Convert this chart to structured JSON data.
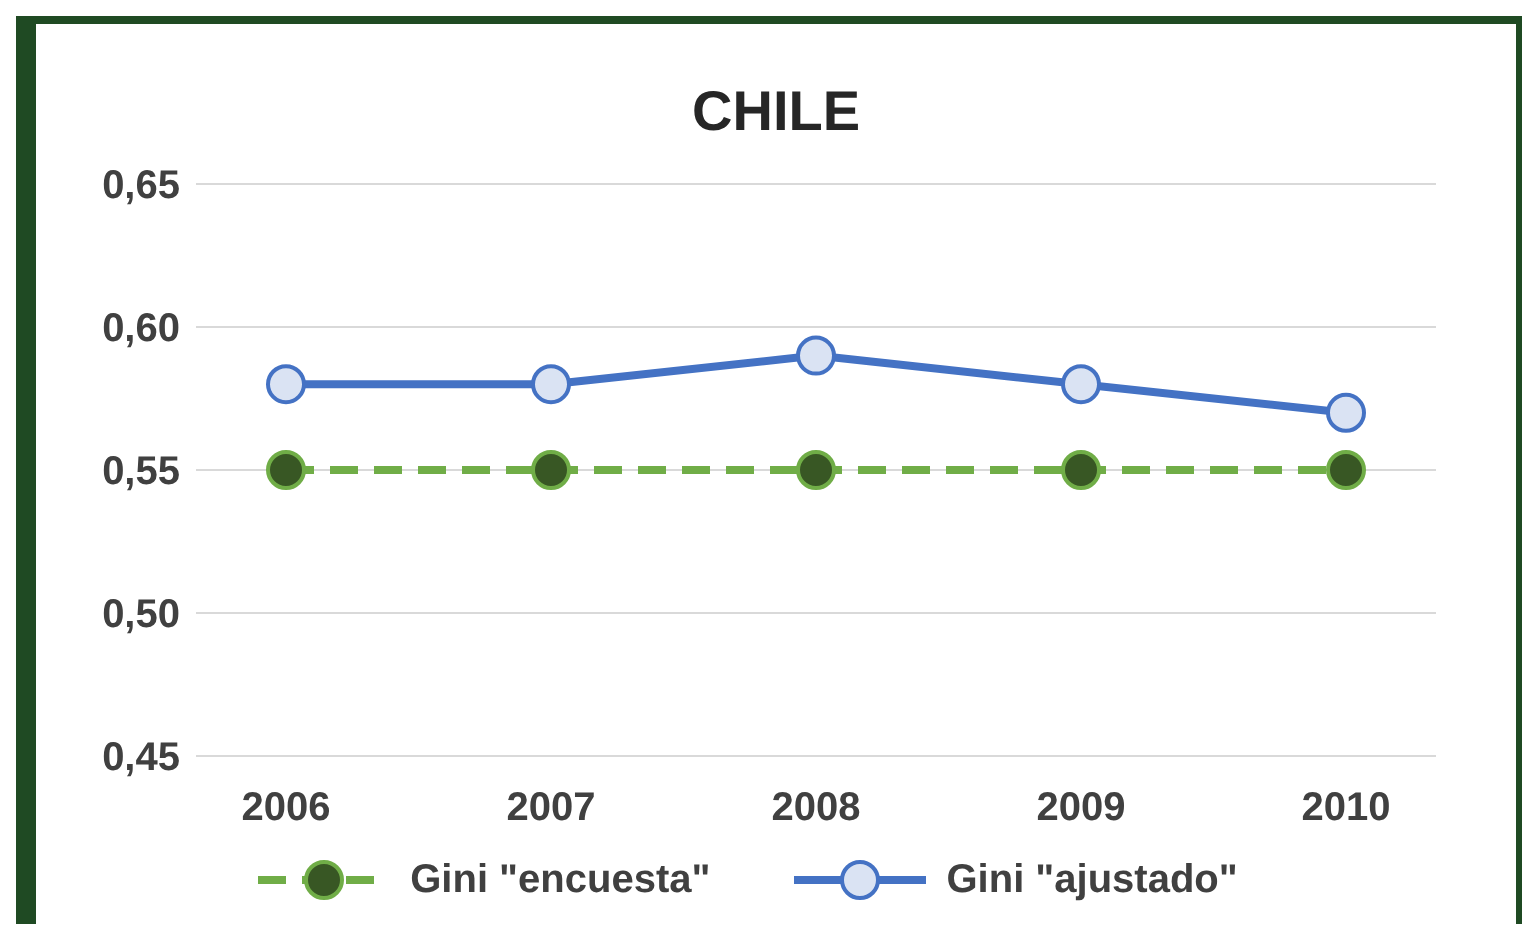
{
  "chart_data": {
    "type": "line",
    "title": "CHILE",
    "categories": [
      "2006",
      "2007",
      "2008",
      "2009",
      "2010"
    ],
    "series": [
      {
        "name": "Gini \"encuesta\"",
        "color": "#70ad47",
        "line_style": "dashed",
        "values": [
          0.55,
          0.55,
          0.55,
          0.55,
          0.55
        ]
      },
      {
        "name": "Gini \"ajustado\"",
        "color": "#4472c4",
        "line_style": "solid",
        "values": [
          0.58,
          0.58,
          0.59,
          0.58,
          0.57
        ]
      }
    ],
    "ylim": [
      0.45,
      0.65
    ],
    "yticks": [
      {
        "value": 0.45,
        "label": "0,45"
      },
      {
        "value": 0.5,
        "label": "0,50"
      },
      {
        "value": 0.55,
        "label": "0,55"
      },
      {
        "value": 0.6,
        "label": "0,60"
      },
      {
        "value": 0.65,
        "label": "0,65"
      }
    ],
    "grid": "y",
    "legend": "bottom",
    "marker": "circle"
  }
}
